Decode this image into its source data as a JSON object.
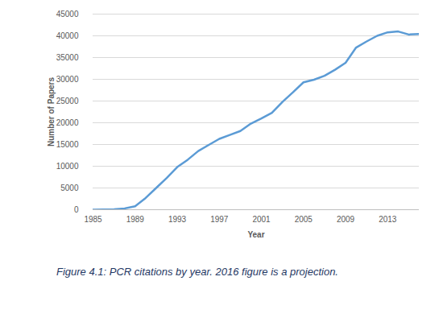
{
  "chart_data": {
    "type": "line",
    "caption": "Figure 4.1: PCR citations by year. 2016 figure is a projection.",
    "x_label": "Year",
    "y_label": "Number of Papers",
    "x": [
      1985,
      1986,
      1987,
      1988,
      1989,
      1990,
      1991,
      1992,
      1993,
      1994,
      1995,
      1996,
      1997,
      1998,
      1999,
      2000,
      2001,
      2002,
      2003,
      2004,
      2005,
      2006,
      2007,
      2008,
      2009,
      2010,
      2011,
      2012,
      2013,
      2014,
      2015,
      2016
    ],
    "values": [
      0,
      50,
      100,
      300,
      800,
      2700,
      5000,
      7300,
      9800,
      11500,
      13500,
      14900,
      16300,
      17200,
      18100,
      19800,
      21000,
      22300,
      24800,
      27000,
      29300,
      29900,
      30800,
      32200,
      33800,
      37300,
      38700,
      40000,
      40800,
      41000,
      40300,
      40400
    ],
    "color": "#5b9bd5",
    "xlim": [
      1985,
      2016
    ],
    "xticks": [
      1985,
      1989,
      1993,
      1997,
      2001,
      2005,
      2009,
      2013
    ],
    "ylim": [
      0,
      45000
    ],
    "yticks": [
      0,
      5000,
      10000,
      15000,
      20000,
      25000,
      30000,
      35000,
      40000,
      45000
    ],
    "grid": true
  }
}
